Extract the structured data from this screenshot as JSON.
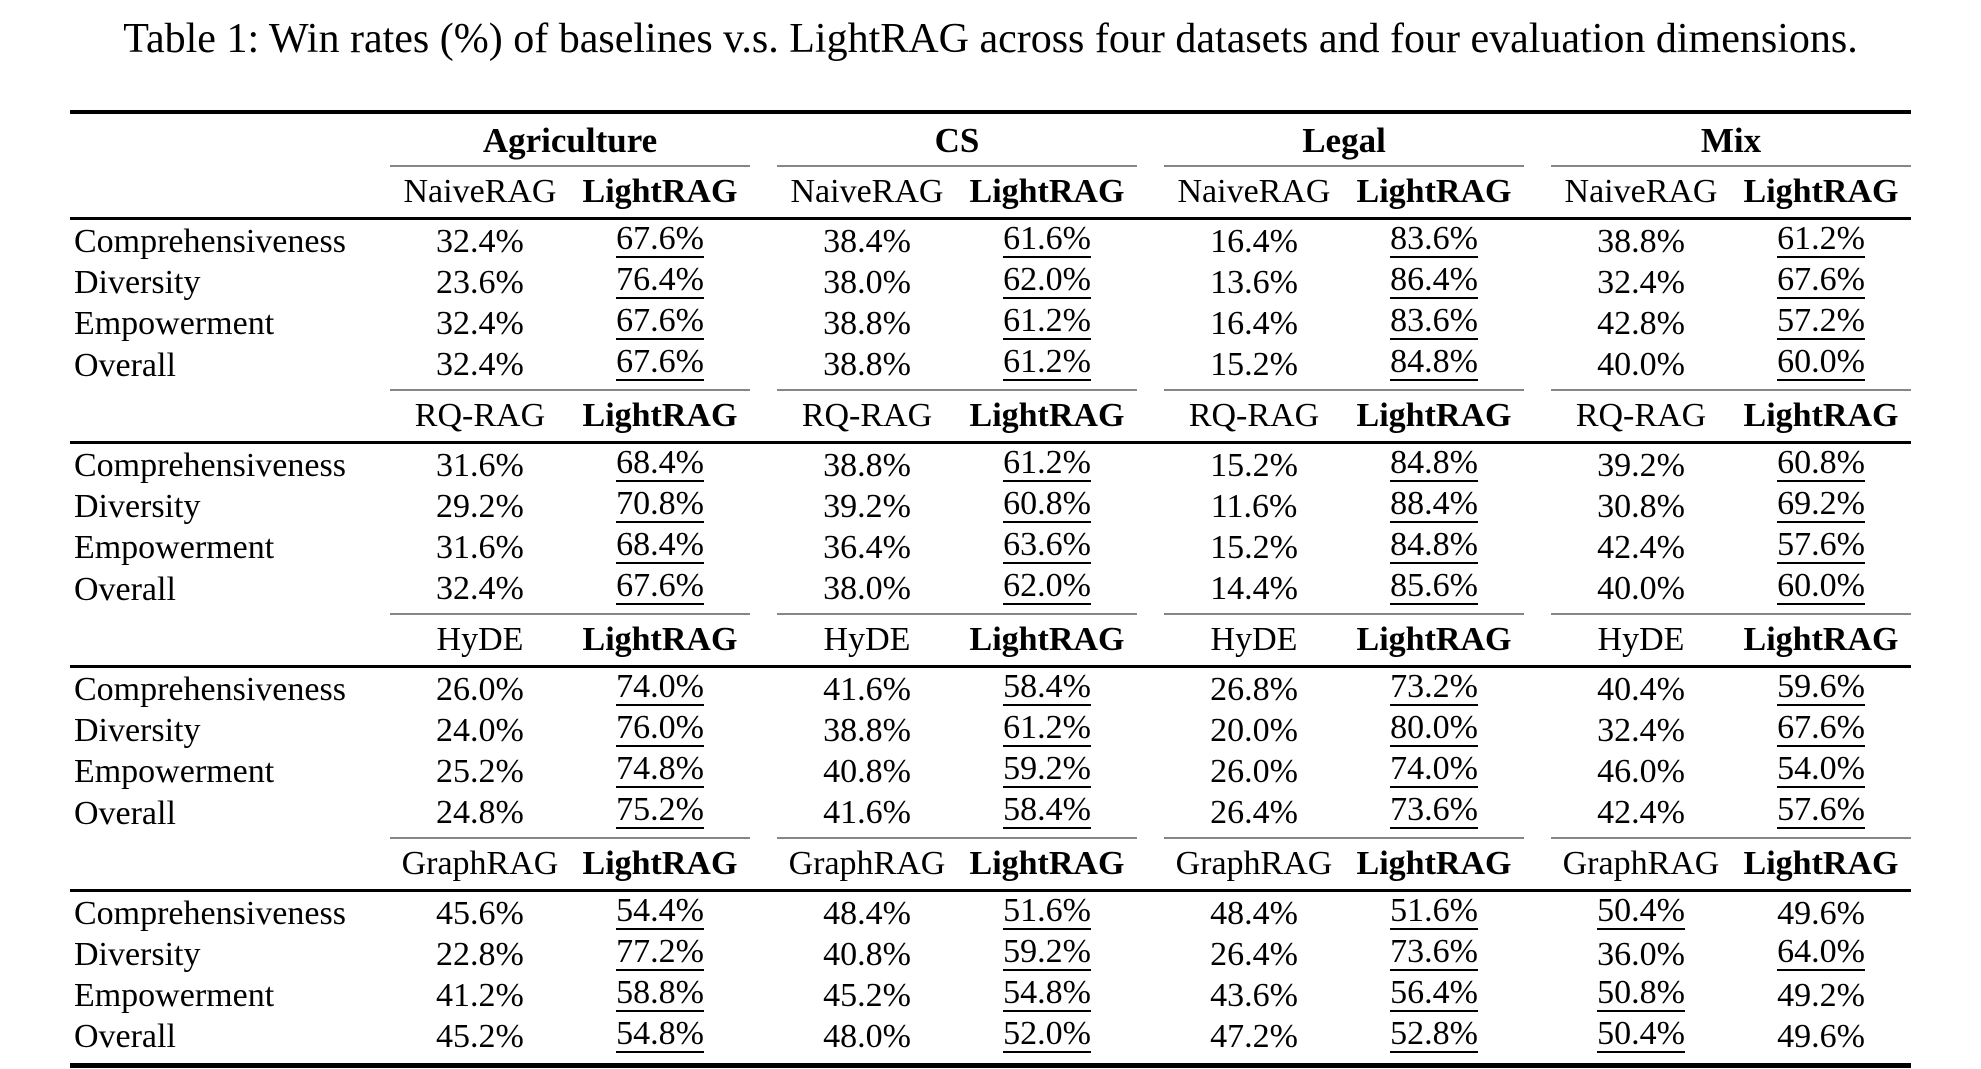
{
  "title": "Table 1: Win rates (%) of baselines v.s. LightRAG across four datasets and four evaluation dimensions.",
  "colors": {
    "text": "#000000",
    "light_rule": "#868686"
  },
  "table": {
    "datasets": [
      "Agriculture",
      "CS",
      "Legal",
      "Mix"
    ],
    "metrics": [
      "Comprehensiveness",
      "Diversity",
      "Empowerment",
      "Overall"
    ],
    "lightrag_label": "LightRAG",
    "blocks": [
      {
        "baseline": "NaiveRAG",
        "rows": [
          {
            "metric": "Comprehensiveness",
            "pairs": [
              {
                "baseline": "32.4%",
                "lightrag": "67.6%",
                "winner": "lightrag"
              },
              {
                "baseline": "38.4%",
                "lightrag": "61.6%",
                "winner": "lightrag"
              },
              {
                "baseline": "16.4%",
                "lightrag": "83.6%",
                "winner": "lightrag"
              },
              {
                "baseline": "38.8%",
                "lightrag": "61.2%",
                "winner": "lightrag"
              }
            ]
          },
          {
            "metric": "Diversity",
            "pairs": [
              {
                "baseline": "23.6%",
                "lightrag": "76.4%",
                "winner": "lightrag"
              },
              {
                "baseline": "38.0%",
                "lightrag": "62.0%",
                "winner": "lightrag"
              },
              {
                "baseline": "13.6%",
                "lightrag": "86.4%",
                "winner": "lightrag"
              },
              {
                "baseline": "32.4%",
                "lightrag": "67.6%",
                "winner": "lightrag"
              }
            ]
          },
          {
            "metric": "Empowerment",
            "pairs": [
              {
                "baseline": "32.4%",
                "lightrag": "67.6%",
                "winner": "lightrag"
              },
              {
                "baseline": "38.8%",
                "lightrag": "61.2%",
                "winner": "lightrag"
              },
              {
                "baseline": "16.4%",
                "lightrag": "83.6%",
                "winner": "lightrag"
              },
              {
                "baseline": "42.8%",
                "lightrag": "57.2%",
                "winner": "lightrag"
              }
            ]
          },
          {
            "metric": "Overall",
            "pairs": [
              {
                "baseline": "32.4%",
                "lightrag": "67.6%",
                "winner": "lightrag"
              },
              {
                "baseline": "38.8%",
                "lightrag": "61.2%",
                "winner": "lightrag"
              },
              {
                "baseline": "15.2%",
                "lightrag": "84.8%",
                "winner": "lightrag"
              },
              {
                "baseline": "40.0%",
                "lightrag": "60.0%",
                "winner": "lightrag"
              }
            ]
          }
        ]
      },
      {
        "baseline": "RQ-RAG",
        "rows": [
          {
            "metric": "Comprehensiveness",
            "pairs": [
              {
                "baseline": "31.6%",
                "lightrag": "68.4%",
                "winner": "lightrag"
              },
              {
                "baseline": "38.8%",
                "lightrag": "61.2%",
                "winner": "lightrag"
              },
              {
                "baseline": "15.2%",
                "lightrag": "84.8%",
                "winner": "lightrag"
              },
              {
                "baseline": "39.2%",
                "lightrag": "60.8%",
                "winner": "lightrag"
              }
            ]
          },
          {
            "metric": "Diversity",
            "pairs": [
              {
                "baseline": "29.2%",
                "lightrag": "70.8%",
                "winner": "lightrag"
              },
              {
                "baseline": "39.2%",
                "lightrag": "60.8%",
                "winner": "lightrag"
              },
              {
                "baseline": "11.6%",
                "lightrag": "88.4%",
                "winner": "lightrag"
              },
              {
                "baseline": "30.8%",
                "lightrag": "69.2%",
                "winner": "lightrag"
              }
            ]
          },
          {
            "metric": "Empowerment",
            "pairs": [
              {
                "baseline": "31.6%",
                "lightrag": "68.4%",
                "winner": "lightrag"
              },
              {
                "baseline": "36.4%",
                "lightrag": "63.6%",
                "winner": "lightrag"
              },
              {
                "baseline": "15.2%",
                "lightrag": "84.8%",
                "winner": "lightrag"
              },
              {
                "baseline": "42.4%",
                "lightrag": "57.6%",
                "winner": "lightrag"
              }
            ]
          },
          {
            "metric": "Overall",
            "pairs": [
              {
                "baseline": "32.4%",
                "lightrag": "67.6%",
                "winner": "lightrag"
              },
              {
                "baseline": "38.0%",
                "lightrag": "62.0%",
                "winner": "lightrag"
              },
              {
                "baseline": "14.4%",
                "lightrag": "85.6%",
                "winner": "lightrag"
              },
              {
                "baseline": "40.0%",
                "lightrag": "60.0%",
                "winner": "lightrag"
              }
            ]
          }
        ]
      },
      {
        "baseline": "HyDE",
        "rows": [
          {
            "metric": "Comprehensiveness",
            "pairs": [
              {
                "baseline": "26.0%",
                "lightrag": "74.0%",
                "winner": "lightrag"
              },
              {
                "baseline": "41.6%",
                "lightrag": "58.4%",
                "winner": "lightrag"
              },
              {
                "baseline": "26.8%",
                "lightrag": "73.2%",
                "winner": "lightrag"
              },
              {
                "baseline": "40.4%",
                "lightrag": "59.6%",
                "winner": "lightrag"
              }
            ]
          },
          {
            "metric": "Diversity",
            "pairs": [
              {
                "baseline": "24.0%",
                "lightrag": "76.0%",
                "winner": "lightrag"
              },
              {
                "baseline": "38.8%",
                "lightrag": "61.2%",
                "winner": "lightrag"
              },
              {
                "baseline": "20.0%",
                "lightrag": "80.0%",
                "winner": "lightrag"
              },
              {
                "baseline": "32.4%",
                "lightrag": "67.6%",
                "winner": "lightrag"
              }
            ]
          },
          {
            "metric": "Empowerment",
            "pairs": [
              {
                "baseline": "25.2%",
                "lightrag": "74.8%",
                "winner": "lightrag"
              },
              {
                "baseline": "40.8%",
                "lightrag": "59.2%",
                "winner": "lightrag"
              },
              {
                "baseline": "26.0%",
                "lightrag": "74.0%",
                "winner": "lightrag"
              },
              {
                "baseline": "46.0%",
                "lightrag": "54.0%",
                "winner": "lightrag"
              }
            ]
          },
          {
            "metric": "Overall",
            "pairs": [
              {
                "baseline": "24.8%",
                "lightrag": "75.2%",
                "winner": "lightrag"
              },
              {
                "baseline": "41.6%",
                "lightrag": "58.4%",
                "winner": "lightrag"
              },
              {
                "baseline": "26.4%",
                "lightrag": "73.6%",
                "winner": "lightrag"
              },
              {
                "baseline": "42.4%",
                "lightrag": "57.6%",
                "winner": "lightrag"
              }
            ]
          }
        ]
      },
      {
        "baseline": "GraphRAG",
        "rows": [
          {
            "metric": "Comprehensiveness",
            "pairs": [
              {
                "baseline": "45.6%",
                "lightrag": "54.4%",
                "winner": "lightrag"
              },
              {
                "baseline": "48.4%",
                "lightrag": "51.6%",
                "winner": "lightrag"
              },
              {
                "baseline": "48.4%",
                "lightrag": "51.6%",
                "winner": "lightrag"
              },
              {
                "baseline": "50.4%",
                "lightrag": "49.6%",
                "winner": "baseline"
              }
            ]
          },
          {
            "metric": "Diversity",
            "pairs": [
              {
                "baseline": "22.8%",
                "lightrag": "77.2%",
                "winner": "lightrag"
              },
              {
                "baseline": "40.8%",
                "lightrag": "59.2%",
                "winner": "lightrag"
              },
              {
                "baseline": "26.4%",
                "lightrag": "73.6%",
                "winner": "lightrag"
              },
              {
                "baseline": "36.0%",
                "lightrag": "64.0%",
                "winner": "lightrag"
              }
            ]
          },
          {
            "metric": "Empowerment",
            "pairs": [
              {
                "baseline": "41.2%",
                "lightrag": "58.8%",
                "winner": "lightrag"
              },
              {
                "baseline": "45.2%",
                "lightrag": "54.8%",
                "winner": "lightrag"
              },
              {
                "baseline": "43.6%",
                "lightrag": "56.4%",
                "winner": "lightrag"
              },
              {
                "baseline": "50.8%",
                "lightrag": "49.2%",
                "winner": "baseline"
              }
            ]
          },
          {
            "metric": "Overall",
            "pairs": [
              {
                "baseline": "45.2%",
                "lightrag": "54.8%",
                "winner": "lightrag"
              },
              {
                "baseline": "48.0%",
                "lightrag": "52.0%",
                "winner": "lightrag"
              },
              {
                "baseline": "47.2%",
                "lightrag": "52.8%",
                "winner": "lightrag"
              },
              {
                "baseline": "50.4%",
                "lightrag": "49.6%",
                "winner": "baseline"
              }
            ]
          }
        ]
      }
    ]
  }
}
